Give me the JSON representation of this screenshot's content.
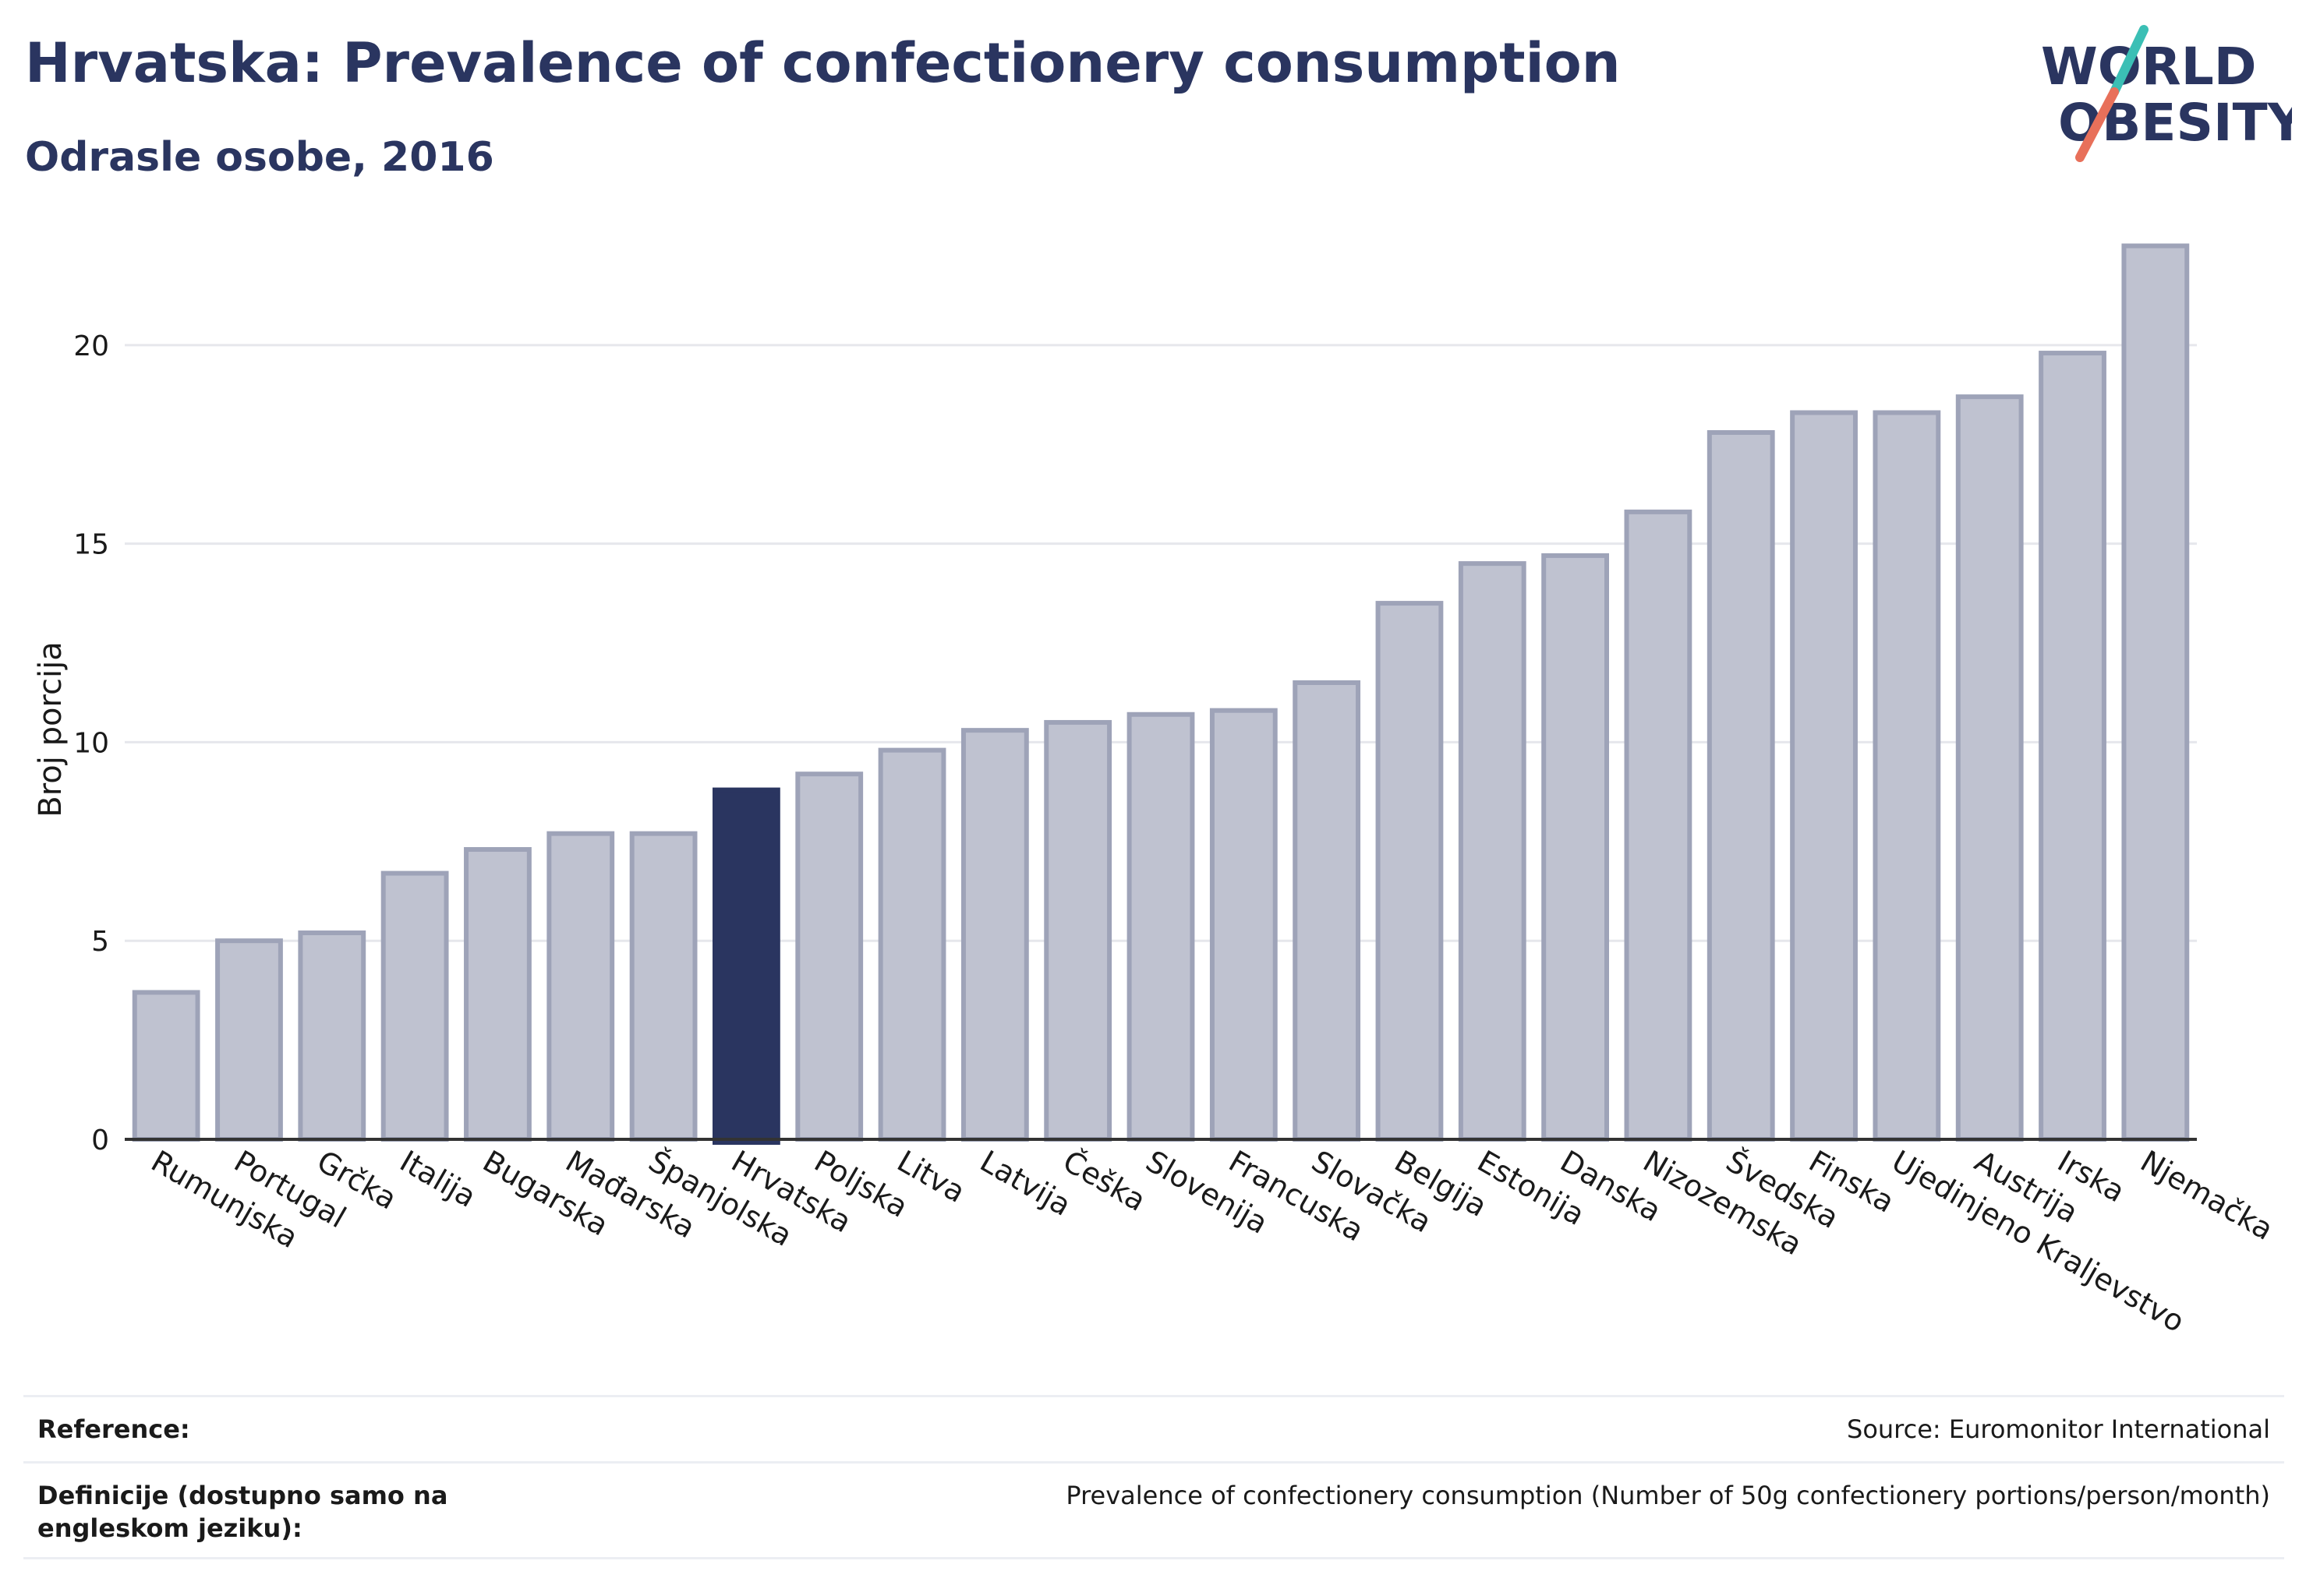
{
  "header": {
    "title": "Hrvatska: Prevalence of confectionery consumption",
    "subtitle": "Odrasle osobe, 2016"
  },
  "logo": {
    "line1": "WORLD",
    "line2": "OBESITY",
    "icon": "world-obesity-logo",
    "colors": {
      "text": "#2a3560",
      "slash_top": "#3bbfb5",
      "slash_bottom": "#e8705a"
    }
  },
  "colors": {
    "bar": "#bfc2d0",
    "bar_border": "#9ea3b8",
    "highlight": "#2a3560",
    "grid": "#e6e7ec",
    "axis": "#333333"
  },
  "chart_data": {
    "type": "bar",
    "ylabel": "Broj porcija",
    "ylim": [
      0,
      23
    ],
    "yticks": [
      0,
      5,
      10,
      15,
      20
    ],
    "grid": true,
    "highlight": "Hrvatska",
    "categories": [
      "Rumunjska",
      "Portugal",
      "Grčka",
      "Italija",
      "Bugarska",
      "Mađarska",
      "Španjolska",
      "Hrvatska",
      "Poljska",
      "Litva",
      "Latvija",
      "Češka",
      "Slovenija",
      "Francuska",
      "Slovačka",
      "Belgija",
      "Estonija",
      "Danska",
      "Nizozemska",
      "Švedska",
      "Finska",
      "Ujedinjeno Kraljevstvo",
      "Austrija",
      "Irska",
      "Njemačka"
    ],
    "values": [
      3.7,
      5.0,
      5.2,
      6.7,
      7.3,
      7.7,
      7.7,
      8.8,
      9.2,
      9.8,
      10.3,
      10.5,
      10.7,
      10.8,
      11.5,
      13.5,
      14.5,
      14.7,
      15.8,
      17.8,
      18.3,
      18.3,
      18.7,
      19.8,
      22.5
    ]
  },
  "footer": {
    "reference_label": "Reference:",
    "reference_value": "Source: Euromonitor International",
    "definition_label": "Definicije (dostupno samo na engleskom jeziku):",
    "definition_value": "Prevalence of confectionery consumption (Number of 50g confectionery portions/person/month)"
  }
}
